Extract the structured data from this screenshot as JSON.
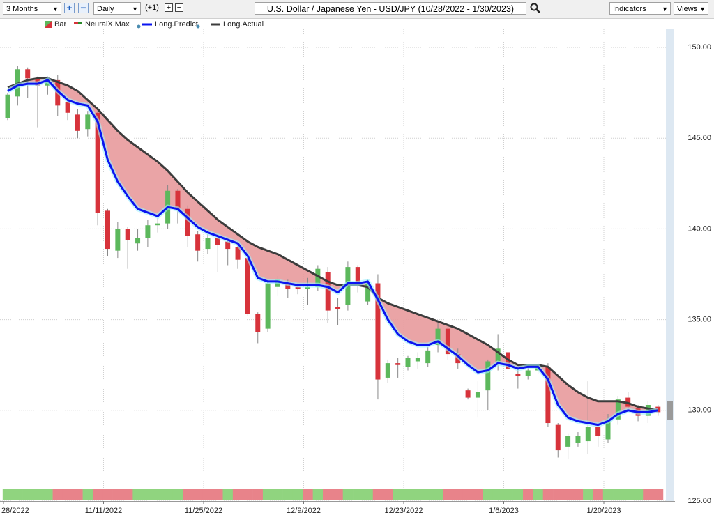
{
  "toolbar": {
    "range": "3 Months",
    "interval": "Daily",
    "offset": "(+1)",
    "title": "U.S. Dollar / Japanese Yen - USD/JPY (10/28/2022 - 1/30/2023)",
    "indicators": "Indicators",
    "views": "Views"
  },
  "chart_data": {
    "type": "candlestick",
    "categories": [
      "28/2022",
      null,
      null,
      null,
      null,
      null,
      null,
      null,
      null,
      null,
      "11/11/2022",
      null,
      null,
      null,
      null,
      null,
      null,
      null,
      null,
      null,
      "11/25/2022",
      null,
      null,
      null,
      null,
      null,
      null,
      null,
      null,
      null,
      "12/9/2022",
      null,
      null,
      null,
      null,
      null,
      null,
      null,
      null,
      null,
      "12/23/2022",
      null,
      null,
      null,
      null,
      null,
      null,
      null,
      null,
      null,
      "1/6/2023",
      null,
      null,
      null,
      null,
      null,
      null,
      null,
      null,
      null,
      "1/20/2023",
      null,
      null,
      null,
      null,
      null
    ],
    "ylim": [
      125,
      151
    ],
    "yticks": [
      {
        "value": 125,
        "label": "125.00"
      },
      {
        "value": 130,
        "label": "130.00"
      },
      {
        "value": 135,
        "label": "135.00"
      },
      {
        "value": 140,
        "label": "140.00"
      },
      {
        "value": 145,
        "label": "145.00"
      },
      {
        "value": 150,
        "label": "150.00"
      }
    ],
    "grid": true,
    "fill_color": "#e89a9c",
    "series": [
      {
        "name": "Bar",
        "up_color": "#5cb85c",
        "down_color": "#d7333b",
        "open": [
          146.1,
          147.3,
          148.8,
          148.3,
          147.9,
          148.2,
          147.0,
          146.3,
          145.5,
          146.4,
          141.0,
          138.8,
          140.0,
          139.2,
          139.5,
          140.2,
          140.3,
          142.1,
          141.1,
          139.7,
          138.9,
          139.5,
          139.3,
          139.0,
          138.4,
          135.3,
          134.5,
          136.8,
          137.0,
          136.8,
          136.7,
          136.8,
          137.6,
          135.7,
          135.8,
          137.9,
          136.0,
          137.0,
          131.8,
          132.6,
          132.4,
          132.7,
          132.6,
          133.6,
          134.5,
          133.1,
          131.1,
          130.7,
          131.1,
          132.7,
          133.2,
          132.0,
          131.9,
          132.2,
          132.4,
          129.2,
          128.0,
          128.2,
          128.3,
          129.1,
          128.4,
          129.5,
          130.7,
          130.1,
          129.7,
          130.2
        ],
        "high": [
          147.5,
          149.0,
          148.9,
          148.4,
          148.4,
          148.5,
          147.2,
          146.6,
          146.5,
          146.5,
          141.1,
          140.4,
          140.1,
          140.0,
          140.5,
          140.6,
          142.4,
          142.2,
          141.3,
          139.9,
          139.8,
          139.7,
          139.5,
          139.3,
          138.5,
          135.4,
          137.2,
          137.4,
          137.2,
          137.0,
          137.3,
          138.0,
          137.9,
          136.2,
          138.2,
          138.0,
          137.2,
          137.5,
          132.8,
          132.9,
          133.0,
          133.2,
          133.5,
          134.8,
          134.8,
          133.4,
          131.2,
          131.6,
          132.8,
          134.2,
          134.8,
          132.3,
          132.4,
          132.6,
          132.6,
          129.3,
          128.7,
          128.8,
          131.6,
          129.4,
          129.8,
          130.8,
          131.0,
          130.3,
          130.5,
          130.3
        ],
        "low": [
          146.0,
          146.8,
          147.2,
          145.6,
          147.4,
          146.2,
          146.0,
          145.0,
          145.1,
          140.2,
          138.5,
          138.4,
          137.8,
          138.8,
          139.0,
          139.8,
          140.0,
          140.3,
          139.0,
          138.2,
          138.6,
          137.6,
          138.0,
          137.8,
          135.2,
          133.7,
          134.3,
          136.3,
          136.2,
          136.4,
          135.8,
          136.6,
          134.8,
          134.7,
          135.5,
          136.5,
          135.8,
          130.6,
          131.5,
          131.8,
          132.2,
          132.3,
          132.4,
          133.2,
          132.8,
          132.3,
          130.6,
          129.6,
          130.0,
          132.2,
          132.0,
          131.2,
          131.7,
          132.0,
          129.1,
          127.4,
          127.3,
          128.0,
          127.6,
          128.0,
          128.2,
          129.2,
          130.0,
          129.4,
          129.3,
          129.7
        ],
        "close": [
          147.4,
          148.8,
          148.3,
          147.9,
          148.3,
          146.8,
          146.4,
          145.4,
          146.3,
          140.9,
          138.9,
          140.0,
          139.4,
          139.5,
          140.2,
          140.3,
          142.1,
          141.1,
          139.6,
          138.8,
          139.5,
          139.1,
          138.9,
          138.3,
          135.3,
          134.3,
          137.0,
          137.2,
          136.7,
          136.7,
          136.8,
          137.8,
          135.5,
          135.6,
          137.9,
          136.9,
          137.0,
          131.7,
          132.6,
          132.5,
          132.9,
          132.9,
          133.3,
          134.5,
          133.1,
          132.6,
          130.7,
          131.0,
          132.7,
          133.4,
          132.3,
          131.9,
          132.2,
          132.4,
          129.3,
          127.8,
          128.6,
          128.6,
          129.1,
          128.6,
          129.5,
          130.6,
          130.2,
          129.7,
          130.3,
          129.9
        ]
      },
      {
        "name": "NeuralX.Max",
        "up_color": "#90d47f",
        "down_color": "#e8838a",
        "values": [
          1,
          1,
          1,
          1,
          1,
          -1,
          -1,
          -1,
          1,
          -1,
          -1,
          -1,
          -1,
          1,
          1,
          1,
          1,
          1,
          -1,
          -1,
          -1,
          -1,
          1,
          -1,
          -1,
          -1,
          1,
          1,
          1,
          1,
          -1,
          1,
          -1,
          -1,
          1,
          1,
          1,
          -1,
          -1,
          1,
          1,
          1,
          1,
          1,
          -1,
          -1,
          -1,
          -1,
          1,
          1,
          1,
          1,
          -1,
          1,
          -1,
          -1,
          -1,
          -1,
          1,
          -1,
          1,
          1,
          1,
          1,
          -1,
          -1
        ]
      },
      {
        "name": "Long.Predict",
        "color": "#0a14f0",
        "values": [
          147.6,
          147.9,
          148.0,
          148.0,
          148.2,
          147.6,
          147.1,
          146.9,
          146.8,
          145.9,
          143.8,
          142.6,
          141.8,
          141.1,
          140.9,
          140.7,
          141.2,
          141.1,
          140.6,
          140.1,
          139.8,
          139.6,
          139.4,
          139.2,
          138.5,
          137.3,
          137.1,
          137.1,
          137.0,
          136.9,
          136.9,
          136.9,
          136.8,
          136.5,
          137.0,
          137.0,
          137.1,
          136.1,
          135.0,
          134.2,
          133.8,
          133.6,
          133.6,
          133.8,
          133.4,
          133.0,
          132.5,
          132.1,
          132.2,
          132.6,
          132.5,
          132.3,
          132.4,
          132.4,
          131.7,
          130.3,
          129.6,
          129.4,
          129.3,
          129.2,
          129.4,
          129.8,
          130.0,
          129.9,
          129.9,
          130.0
        ]
      },
      {
        "name": "Long.Actual",
        "color": "#3c3c3c",
        "values": [
          147.8,
          148.0,
          148.2,
          148.3,
          148.3,
          148.1,
          147.9,
          147.6,
          147.1,
          146.6,
          146.0,
          145.4,
          144.9,
          144.5,
          144.1,
          143.7,
          143.2,
          142.6,
          142.0,
          141.5,
          141.0,
          140.5,
          140.1,
          139.7,
          139.3,
          139.0,
          138.8,
          138.6,
          138.3,
          138.0,
          137.7,
          137.4,
          137.1,
          136.9,
          136.9,
          136.9,
          136.8,
          136.2,
          135.9,
          135.7,
          135.5,
          135.3,
          135.1,
          134.9,
          134.7,
          134.5,
          134.2,
          133.9,
          133.6,
          133.2,
          132.8,
          132.5,
          132.5,
          132.5,
          132.4,
          131.9,
          131.4,
          131.0,
          130.7,
          130.5,
          130.5,
          130.5,
          130.4,
          130.2,
          130.1,
          130.0
        ]
      }
    ]
  }
}
